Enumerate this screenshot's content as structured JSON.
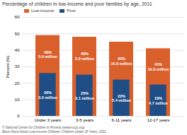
{
  "chart_data": {
    "type": "bar",
    "title": "Percentage of children in low-income and poor families by age, 2011",
    "ylabel": "Percent (%)",
    "categories": [
      "Under 3 years",
      "3-5 years",
      "6-11 years",
      "12-17 years"
    ],
    "series": [
      {
        "name": "Low-income",
        "color": "#D95F2B",
        "values": [
          49,
          48,
          45,
          41
        ],
        "value_labels": [
          "49%\n5.6 million",
          "48%\n5.9 million",
          "45%\n10.9 million",
          "41%\n10.0 million"
        ]
      },
      {
        "name": "Poor",
        "color": "#1F4E87",
        "values": [
          26,
          25,
          22,
          19
        ],
        "value_labels": [
          "26%\n3.0 million",
          "25%\n3.1 million",
          "22%\n5.4 million",
          "19%\n4.7 million"
        ]
      }
    ],
    "ylim": [
      0,
      60
    ],
    "yticks": [
      0,
      10,
      20,
      30,
      40,
      50,
      60
    ],
    "grid": true,
    "legend": "top",
    "data_labels": true,
    "caption": [
      "© National Center for Children in Poverty (www.nccp.org)",
      "Basic Facts About Low-Income Children: Children Under 18 Years, 2011"
    ]
  }
}
